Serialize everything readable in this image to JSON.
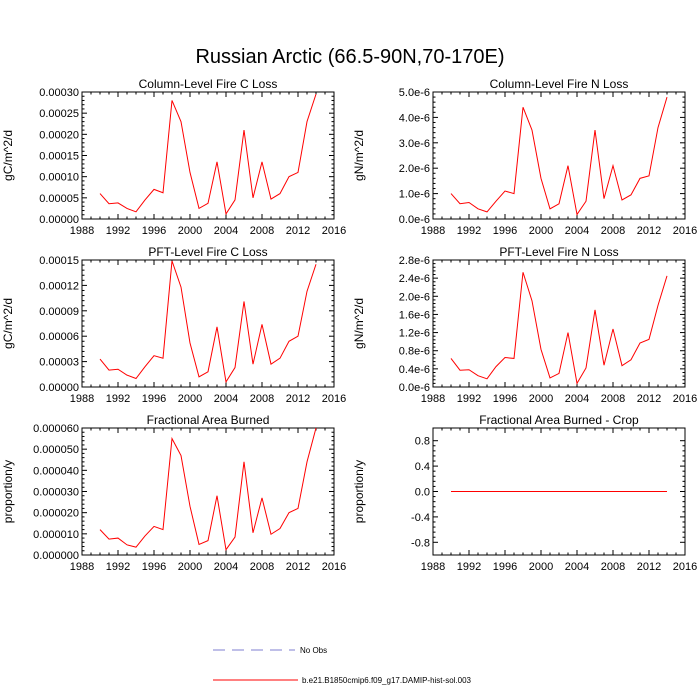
{
  "figure": {
    "title": "Russian Arctic (66.5-90N,70-170E)"
  },
  "colors": {
    "model_line": "#ff0000",
    "obs_line": "#7f7fd0",
    "axis": "#000000"
  },
  "legend": {
    "obs_label": "No Obs",
    "model_label": "b.e21.B1850cmip6.f09_g17.DAMIP-hist-sol.003"
  },
  "chart_data": [
    {
      "type": "line",
      "title": "Column-Level Fire C Loss",
      "ylabel": "gC/m^2/d",
      "xlim": [
        1988,
        2016
      ],
      "ylim": [
        0,
        0.0003
      ],
      "x_ticks": [
        "1988",
        "1992",
        "1996",
        "2000",
        "2004",
        "2008",
        "2012",
        "2016"
      ],
      "y_ticks": [
        "0.00000",
        "0.00005",
        "0.00010",
        "0.00015",
        "0.00020",
        "0.00025",
        "0.00030"
      ],
      "x": [
        1990,
        1991,
        1992,
        1993,
        1994,
        1995,
        1996,
        1997,
        1998,
        1999,
        2000,
        2001,
        2002,
        2003,
        2004,
        2005,
        2006,
        2007,
        2008,
        2009,
        2010,
        2011,
        2012,
        2013,
        2014
      ],
      "values": [
        6e-05,
        3.6e-05,
        3.8e-05,
        2.5e-05,
        1.7e-05,
        4.5e-05,
        7e-05,
        6.2e-05,
        0.00028,
        0.00023,
        0.00011,
        2.5e-05,
        3.7e-05,
        0.000135,
        1.2e-05,
        4.5e-05,
        0.00021,
        5e-05,
        0.000135,
        4.7e-05,
        6e-05,
        0.0001,
        0.00011,
        0.00023,
        0.000295
      ]
    },
    {
      "type": "line",
      "title": "Column-Level Fire N Loss",
      "ylabel": "gN/m^2/d",
      "xlim": [
        1988,
        2016
      ],
      "ylim": [
        0,
        5e-06
      ],
      "x_ticks": [
        "1988",
        "1992",
        "1996",
        "2000",
        "2004",
        "2008",
        "2012",
        "2016"
      ],
      "y_ticks": [
        "0.0e-6",
        "1.0e-6",
        "2.0e-6",
        "3.0e-6",
        "4.0e-6",
        "5.0e-6"
      ],
      "x": [
        1990,
        1991,
        1992,
        1993,
        1994,
        1995,
        1996,
        1997,
        1998,
        1999,
        2000,
        2001,
        2002,
        2003,
        2004,
        2005,
        2006,
        2007,
        2008,
        2009,
        2010,
        2011,
        2012,
        2013,
        2014
      ],
      "values": [
        1e-06,
        6e-07,
        6.5e-07,
        4e-07,
        2.8e-07,
        7e-07,
        1.1e-06,
        1e-06,
        4.4e-06,
        3.5e-06,
        1.6e-06,
        4e-07,
        6e-07,
        2.1e-06,
        1.8e-07,
        7e-07,
        3.5e-06,
        8e-07,
        2.1e-06,
        7.5e-07,
        9.5e-07,
        1.6e-06,
        1.7e-06,
        3.6e-06,
        4.8e-06
      ]
    },
    {
      "type": "line",
      "title": "PFT-Level Fire C Loss",
      "ylabel": "gC/m^2/d",
      "xlim": [
        1988,
        2016
      ],
      "ylim": [
        0,
        0.00015
      ],
      "x_ticks": [
        "1988",
        "1992",
        "1996",
        "2000",
        "2004",
        "2008",
        "2012",
        "2016"
      ],
      "y_ticks": [
        "0.00000",
        "0.00003",
        "0.00006",
        "0.00009",
        "0.00012",
        "0.00015"
      ],
      "x": [
        1990,
        1991,
        1992,
        1993,
        1994,
        1995,
        1996,
        1997,
        1998,
        1999,
        2000,
        2001,
        2002,
        2003,
        2004,
        2005,
        2006,
        2007,
        2008,
        2009,
        2010,
        2011,
        2012,
        2013,
        2014
      ],
      "values": [
        3.3e-05,
        2e-05,
        2.1e-05,
        1.4e-05,
        1e-05,
        2.4e-05,
        3.7e-05,
        3.4e-05,
        0.000149,
        0.000118,
        5.2e-05,
        1.2e-05,
        1.8e-05,
        7.1e-05,
        6e-06,
        2.3e-05,
        0.000101,
        2.7e-05,
        7.4e-05,
        2.7e-05,
        3.4e-05,
        5.4e-05,
        6e-05,
        0.000113,
        0.000145
      ]
    },
    {
      "type": "line",
      "title": "PFT-Level Fire N Loss",
      "ylabel": "gN/m^2/d",
      "xlim": [
        1988,
        2016
      ],
      "ylim": [
        0,
        2.8e-06
      ],
      "x_ticks": [
        "1988",
        "1992",
        "1996",
        "2000",
        "2004",
        "2008",
        "2012",
        "2016"
      ],
      "y_ticks": [
        "0.0e-6",
        "0.4e-6",
        "0.8e-6",
        "1.2e-6",
        "1.6e-6",
        "2.0e-6",
        "2.4e-6",
        "2.8e-6"
      ],
      "x": [
        1990,
        1991,
        1992,
        1993,
        1994,
        1995,
        1996,
        1997,
        1998,
        1999,
        2000,
        2001,
        2002,
        2003,
        2004,
        2005,
        2006,
        2007,
        2008,
        2009,
        2010,
        2011,
        2012,
        2013,
        2014
      ],
      "values": [
        6.3e-07,
        3.7e-07,
        3.8e-07,
        2.5e-07,
        1.8e-07,
        4.5e-07,
        6.5e-07,
        6.3e-07,
        2.53e-06,
        1.9e-06,
        8.3e-07,
        2e-07,
        3e-07,
        1.2e-06,
        8e-08,
        4.2e-07,
        1.7e-06,
        4.8e-07,
        1.28e-06,
        4.7e-07,
        6e-07,
        9.7e-07,
        1.05e-06,
        1.8e-06,
        2.45e-06
      ]
    },
    {
      "type": "line",
      "title": "Fractional Area Burned",
      "ylabel": "proportion/y",
      "xlim": [
        1988,
        2016
      ],
      "ylim": [
        0,
        6e-05
      ],
      "x_ticks": [
        "1988",
        "1992",
        "1996",
        "2000",
        "2004",
        "2008",
        "2012",
        "2016"
      ],
      "y_ticks": [
        "0.000000",
        "0.000010",
        "0.000020",
        "0.000030",
        "0.000040",
        "0.000050",
        "0.000060"
      ],
      "x": [
        1990,
        1991,
        1992,
        1993,
        1994,
        1995,
        1996,
        1997,
        1998,
        1999,
        2000,
        2001,
        2002,
        2003,
        2004,
        2005,
        2006,
        2007,
        2008,
        2009,
        2010,
        2011,
        2012,
        2013,
        2014
      ],
      "values": [
        1.2e-05,
        7.5e-06,
        8e-06,
        4.8e-06,
        3.7e-06,
        9e-06,
        1.35e-05,
        1.2e-05,
        5.5e-05,
        4.7e-05,
        2.3e-05,
        5e-06,
        6.8e-06,
        2.8e-05,
        2.5e-06,
        8.5e-06,
        4.4e-05,
        1.05e-05,
        2.7e-05,
        9.8e-06,
        1.25e-05,
        2e-05,
        2.2e-05,
        4.4e-05,
        6e-05
      ]
    },
    {
      "type": "line",
      "title": "Fractional Area Burned - Crop",
      "ylabel": "proportion/y",
      "xlim": [
        1988,
        2016
      ],
      "ylim": [
        -1.0,
        1.0
      ],
      "x_ticks": [
        "1988",
        "1992",
        "1996",
        "2000",
        "2004",
        "2008",
        "2012",
        "2016"
      ],
      "y_ticks": [
        "-0.8",
        "-0.4",
        "0.0",
        "0.4",
        "0.8"
      ],
      "y_tick_values": [
        -0.8,
        -0.4,
        0.0,
        0.4,
        0.8
      ],
      "x": [
        1990,
        1991,
        1992,
        1993,
        1994,
        1995,
        1996,
        1997,
        1998,
        1999,
        2000,
        2001,
        2002,
        2003,
        2004,
        2005,
        2006,
        2007,
        2008,
        2009,
        2010,
        2011,
        2012,
        2013,
        2014
      ],
      "values": [
        0,
        0,
        0,
        0,
        0,
        0,
        0,
        0,
        0,
        0,
        0,
        0,
        0,
        0,
        0,
        0,
        0,
        0,
        0,
        0,
        0,
        0,
        0,
        0,
        0
      ]
    }
  ]
}
